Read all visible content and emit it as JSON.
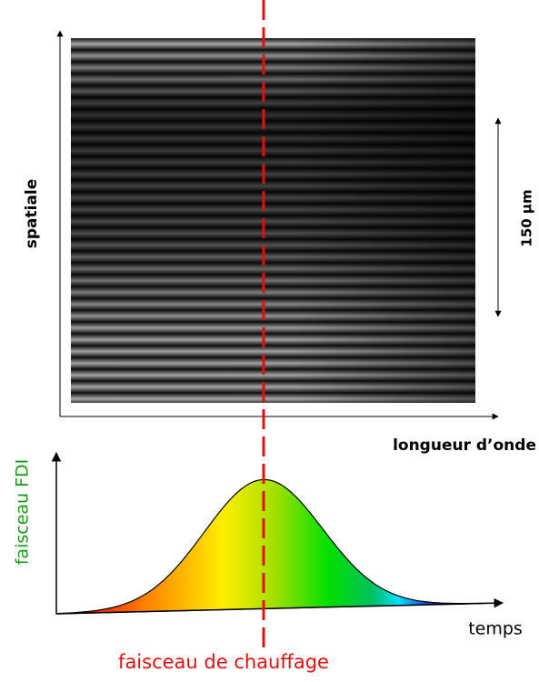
{
  "labels": {
    "y_axis": "spatiale",
    "scale": "150 µm",
    "x_axis": "longueur d’onde",
    "beam_axis": "faisceau FDI",
    "time_axis": "temps",
    "heating_beam": "faisceau de chauffage"
  }
}
